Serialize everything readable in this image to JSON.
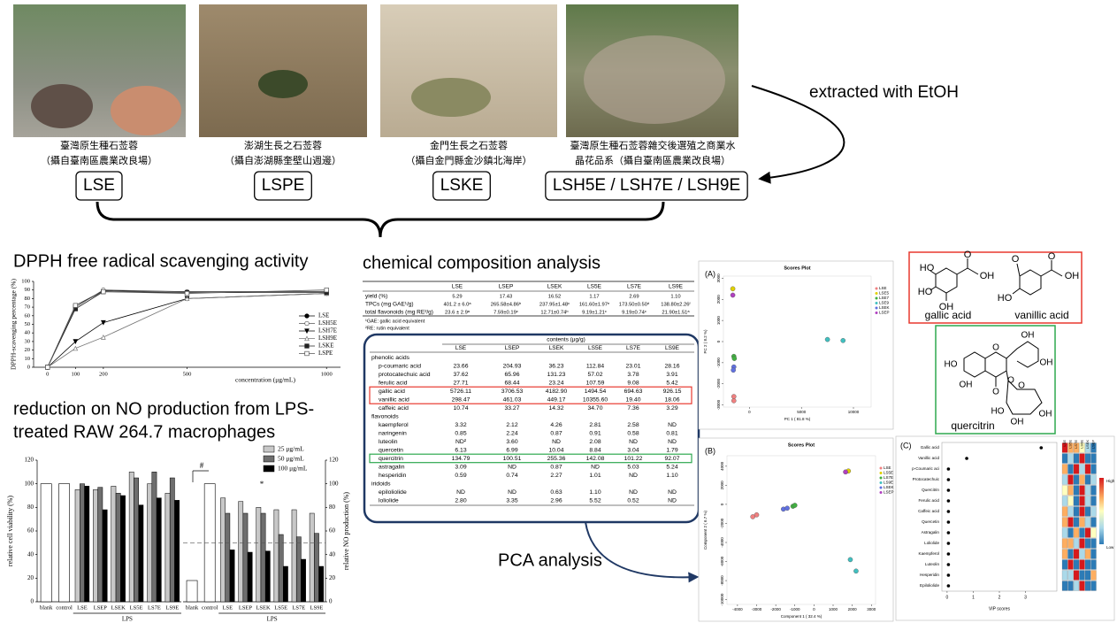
{
  "photos": [
    {
      "lines": [
        "臺灣原生種石莶蓉",
        "（攝自臺南區農業改良場）"
      ],
      "label": "LSE"
    },
    {
      "lines": [
        "澎湖生長之石莶蓉",
        "（攝自澎湖縣奎壁山週邊）"
      ],
      "label": "LSPE"
    },
    {
      "lines": [
        "金門生長之石莶蓉",
        "（攝自金門縣金沙鎮北海岸）"
      ],
      "label": "LSKE"
    },
    {
      "lines": [
        "臺灣原生種石莶蓉雜交後選殖之商業水",
        "晶花品系（攝自臺南區農業改良場）"
      ],
      "label": "LSH5E / LSH7E / LSH9E"
    }
  ],
  "extraction": "extracted with EtOH",
  "composition": {
    "title": "chemical composition analysis",
    "summary": {
      "header": [
        "LSE",
        "LSEP",
        "LSEK",
        "LS5E",
        "LS7E",
        "LS9E"
      ],
      "rows": [
        [
          "yield (%)",
          "5.29",
          "17.43",
          "16.52",
          "1.17",
          "2.69",
          "1.10"
        ],
        [
          "TPCs (mg GAE¹/g)",
          "401.2 ± 6.0ᵃ",
          "265.58±4.86ᵇ",
          "237.95±1.48ᶜ",
          "161.60±1.97ᵉ",
          "173.50±0.50ᵈ",
          "138.80±2.26ᶠ"
        ],
        [
          "total flavonoids (mg RE²/g)",
          "23.6 ± 2.9ᵃ",
          "7.59±0.19ᶜ",
          "12.71±0.74ᵇ",
          "9.19±1.21ᶜ",
          "9.19±0.74ᶜ",
          "21.90±1.51ᵃ"
        ]
      ],
      "footnotes": [
        "¹GAE: gallic acid equivalent",
        "²RE: rutin equivalent"
      ]
    },
    "contents": {
      "unit": "contents (μg/g)",
      "header": [
        "LSE",
        "LSEP",
        "LSEK",
        "LS5E",
        "LS7E",
        "LS9E"
      ],
      "groups": [
        {
          "name": "phenolic acids",
          "rows": [
            {
              "cells": [
                "p-coumaric acid",
                "23.66",
                "204.93",
                "36.23",
                "112.84",
                "23.01",
                "28.16"
              ]
            },
            {
              "cells": [
                "protocatechuic acid",
                "37.62",
                "65.96",
                "131.23",
                "57.02",
                "3.78",
                "3.91"
              ]
            },
            {
              "cells": [
                "ferulic acid",
                "27.71",
                "68.44",
                "23.24",
                "107.59",
                "9.08",
                "5.42"
              ]
            },
            {
              "cells": [
                "gallic acid",
                "5726.11",
                "3706.53",
                "4182.90",
                "1494.54",
                "694.63",
                "926.15"
              ],
              "highlight": "#e8392f"
            },
            {
              "cells": [
                "vanillic acid",
                "298.47",
                "461.03",
                "449.17",
                "10355.60",
                "19.40",
                "18.06"
              ],
              "highlight": "#e8392f"
            },
            {
              "cells": [
                "caffeic acid",
                "10.74",
                "33.27",
                "14.32",
                "34.70",
                "7.36",
                "3.29"
              ]
            }
          ]
        },
        {
          "name": "flavonoids",
          "rows": [
            {
              "cells": [
                "kaempferol",
                "3.32",
                "2.12",
                "4.26",
                "2.81",
                "2.58",
                "ND"
              ]
            },
            {
              "cells": [
                "naringenin",
                "0.85",
                "2.24",
                "0.87",
                "0.91",
                "0.58",
                "0.81"
              ]
            },
            {
              "cells": [
                "luteolin",
                "ND²",
                "3.60",
                "ND",
                "2.08",
                "ND",
                "ND"
              ]
            },
            {
              "cells": [
                "quercetin",
                "6.13",
                "6.99",
                "10.04",
                "8.84",
                "3.04",
                "1.79"
              ]
            },
            {
              "cells": [
                "quercitrin",
                "134.79",
                "100.51",
                "255.36",
                "142.08",
                "101.22",
                "92.07"
              ],
              "highlight": "#2ea84f"
            },
            {
              "cells": [
                "astragalin",
                "3.09",
                "ND",
                "0.87",
                "ND",
                "5.03",
                "5.24"
              ]
            },
            {
              "cells": [
                "hesperidin",
                "0.59",
                "0.74",
                "2.27",
                "1.01",
                "ND",
                "1.10"
              ]
            }
          ]
        },
        {
          "name": "iridoids",
          "rows": [
            {
              "cells": [
                "epiloliolide",
                "ND",
                "ND",
                "0.63",
                "1.10",
                "ND",
                "ND"
              ]
            },
            {
              "cells": [
                "loliolide",
                "2.80",
                "3.35",
                "2.96",
                "5.52",
                "0.52",
                "ND"
              ]
            }
          ]
        }
      ]
    }
  },
  "pca_title": "PCA analysis",
  "structures": [
    {
      "name": "gallic acid",
      "atoms": [
        "HO",
        "HO",
        "OH",
        "O",
        "OH"
      ]
    },
    {
      "name": "vanillic acid",
      "atoms": [
        "O",
        "HO",
        "O",
        "OH"
      ]
    },
    {
      "name": "quercitrin",
      "atoms": [
        "OH",
        "OH",
        "HO",
        "O",
        "O",
        "OH",
        "O",
        "O",
        "HO",
        "OH",
        "OH"
      ]
    }
  ],
  "chart_data": [
    {
      "type": "line",
      "title": "DPPH free radical scavenging activity",
      "xlabel": "concentration (μg/mL)",
      "ylabel": "DPPH-scavenging percentage (%)",
      "x": [
        0,
        100,
        200,
        500,
        1000
      ],
      "xlim": [
        -50,
        1050
      ],
      "xticks": [
        0,
        100,
        200,
        500,
        1000
      ],
      "ylim": [
        0,
        100
      ],
      "yticks": [
        0,
        10,
        20,
        30,
        40,
        50,
        60,
        70,
        80,
        90,
        100
      ],
      "series": [
        {
          "name": "LSE",
          "color": "#000000",
          "marker": "circle-filled",
          "values": [
            0,
            72,
            89,
            88,
            88
          ]
        },
        {
          "name": "LSH5E",
          "color": "#555555",
          "marker": "circle-open",
          "values": [
            0,
            70,
            90,
            88,
            88
          ]
        },
        {
          "name": "LSH7E",
          "color": "#000000",
          "marker": "triangle-down-filled",
          "values": [
            0,
            30,
            52,
            80,
            86
          ]
        },
        {
          "name": "LSH9E",
          "color": "#777777",
          "marker": "triangle-up-open",
          "values": [
            0,
            22,
            35,
            80,
            86
          ]
        },
        {
          "name": "LSKE",
          "color": "#222222",
          "marker": "square-filled",
          "values": [
            0,
            68,
            88,
            87,
            87
          ]
        },
        {
          "name": "LSPE",
          "color": "#555555",
          "marker": "square-open",
          "values": [
            0,
            72,
            88,
            86,
            90
          ]
        }
      ]
    },
    {
      "type": "bar",
      "title": [
        "reduction on NO production from LPS-",
        "treated RAW 264.7 macrophages"
      ],
      "categories": [
        "blank",
        "control",
        "LSE",
        "LSEP",
        "LSEK",
        "LS5E",
        "LS7E",
        "LS9E"
      ],
      "group_label": "LPS",
      "ylim": [
        0,
        120
      ],
      "yticks": [
        0,
        20,
        40,
        60,
        80,
        100,
        120
      ],
      "series": [
        {
          "name": "25 μg/mL",
          "color": "#c8c8c8"
        },
        {
          "name": "50 μg/mL",
          "color": "#6e6e6e"
        },
        {
          "name": "100 μg/mL",
          "color": "#000000"
        }
      ],
      "untreated_color": "#ffffff",
      "panels": [
        {
          "ylabel": "relative cell viability (%)",
          "untreated": [
            100,
            100
          ],
          "values": [
            [
              95,
              95,
              98,
              110,
              100,
              92
            ],
            [
              100,
              97,
              92,
              105,
              110,
              105
            ],
            [
              98,
              78,
              90,
              82,
              88,
              86
            ]
          ]
        },
        {
          "ylabel": "relative NO production (%)",
          "untreated": [
            18,
            100
          ],
          "values": [
            [
              88,
              85,
              80,
              78,
              78,
              75
            ],
            [
              75,
              75,
              75,
              57,
              55,
              58
            ],
            [
              44,
              42,
              43,
              30,
              36,
              30
            ]
          ]
        }
      ],
      "reference_line": 50,
      "annotations": [
        "#",
        "*"
      ]
    },
    {
      "type": "scatter",
      "panel": "(A)",
      "title": "Scores Plot",
      "xlabel": "PC 1 ( 81.8 %)",
      "ylabel": "PC 2 ( 8.2 %)",
      "xlim": [
        -2500,
        11700
      ],
      "xticks": [
        0,
        5000,
        10000
      ],
      "ylim": [
        -3100,
        3100
      ],
      "yticks": [
        -3000,
        -2000,
        -1000,
        0,
        1000,
        2000,
        3000
      ],
      "series": [
        {
          "name": "LSE",
          "color": "#f08080",
          "x": [
            -1500,
            -1500
          ],
          "y": [
            -2600,
            -2800
          ]
        },
        {
          "name": "LSE5",
          "color": "#e0d000",
          "x": [
            -1600
          ],
          "y": [
            2500
          ]
        },
        {
          "name": "LSE7",
          "color": "#40b040",
          "x": [
            -1500,
            -1450
          ],
          "y": [
            -700,
            -800
          ]
        },
        {
          "name": "LSE9",
          "color": "#40c0c0",
          "x": [
            7500,
            9000
          ],
          "y": [
            100,
            50
          ]
        },
        {
          "name": "LSEK",
          "color": "#6070e0",
          "x": [
            -1500,
            -1550
          ],
          "y": [
            -1200,
            -1350
          ]
        },
        {
          "name": "LSEP",
          "color": "#b040c0",
          "x": [
            -1600
          ],
          "y": [
            2200
          ]
        }
      ]
    },
    {
      "type": "scatter",
      "panel": "(B)",
      "title": "Scores Plot",
      "xlabel": "Component 1 ( 32.4 %)",
      "ylabel": "Component 2 ( 6.7 %)",
      "xlim": [
        -4550,
        3220
      ],
      "xticks": [
        -4000,
        -3000,
        -2000,
        -1000,
        0,
        1000,
        2000,
        3000
      ],
      "ylim": [
        -10500,
        5100
      ],
      "yticks": [
        -10000,
        -8000,
        -6000,
        -4000,
        -2000,
        0,
        2000,
        4000
      ],
      "series": [
        {
          "name": "LSE",
          "color": "#f08080",
          "x": [
            -3000,
            -3200
          ],
          "y": [
            -1100,
            -1300
          ]
        },
        {
          "name": "LS5E",
          "color": "#e0d000",
          "x": [
            1800
          ],
          "y": [
            3500
          ]
        },
        {
          "name": "LS7E",
          "color": "#40b040",
          "x": [
            -1100,
            -1000
          ],
          "y": [
            -200,
            -100
          ]
        },
        {
          "name": "LS9E",
          "color": "#40c0c0",
          "x": [
            1900,
            2200
          ],
          "y": [
            -5800,
            -7000
          ]
        },
        {
          "name": "LSEK",
          "color": "#6070e0",
          "x": [
            -1600,
            -1400
          ],
          "y": [
            -500,
            -400
          ]
        },
        {
          "name": "LSEP",
          "color": "#b040c0",
          "x": [
            1650
          ],
          "y": [
            3400
          ]
        }
      ]
    },
    {
      "type": "dot",
      "panel": "(C)",
      "xlabel": "VIP scores",
      "categories": [
        "Gallic acid",
        "Vanillic acid",
        "p-Coumaric aci",
        "Protocatechuic",
        "Quercitrin",
        "Ferulic acid",
        "Caffeic acid",
        "Quercetin",
        "Astragalin",
        "Loliolide",
        "Kaempferol",
        "Luteolin",
        "Hesperidin",
        "Epiloliolide"
      ],
      "values": [
        3.6,
        0.75,
        0.05,
        0.05,
        0.05,
        0.05,
        0.05,
        0.05,
        0.05,
        0.05,
        0.05,
        0.05,
        0.05,
        0.05
      ],
      "xlim": [
        -0.2,
        4.2
      ],
      "xticks": [
        0,
        1,
        2,
        3
      ],
      "columns": [
        "LSE",
        "LS5E",
        "LS7E",
        "LS9E",
        "LSEK",
        "LSEP"
      ],
      "high": "High",
      "low": "Low",
      "heatmap": [
        [
          "#d7191c",
          "#fdae61",
          "#fdae61",
          "#ffffbf",
          "#abd9e9",
          "#2c7bb6"
        ],
        [
          "#2c7bb6",
          "#abd9e9",
          "#2c7bb6",
          "#d7191c",
          "#2c7bb6",
          "#2c7bb6"
        ],
        [
          "#fdae61",
          "#2c7bb6",
          "#d7191c",
          "#abd9e9",
          "#d7191c",
          "#2c7bb6"
        ],
        [
          "#abd9e9",
          "#d7191c",
          "#2c7bb6",
          "#fdae61",
          "#2c7bb6",
          "#abd9e9"
        ],
        [
          "#ffffbf",
          "#fdae61",
          "#2c7bb6",
          "#d7191c",
          "#abd9e9",
          "#2c7bb6"
        ],
        [
          "#abd9e9",
          "#ffffbf",
          "#2c7bb6",
          "#d7191c",
          "#abd9e9",
          "#2c7bb6"
        ],
        [
          "#fdae61",
          "#abd9e9",
          "#2c7bb6",
          "#d7191c",
          "#2c7bb6",
          "#abd9e9"
        ],
        [
          "#fdae61",
          "#d7191c",
          "#2c7bb6",
          "#fdae61",
          "#abd9e9",
          "#2c7bb6"
        ],
        [
          "#abd9e9",
          "#2c7bb6",
          "#fdae61",
          "#2c7bb6",
          "#d7191c",
          "#ffffbf"
        ],
        [
          "#fdae61",
          "#fdae61",
          "#abd9e9",
          "#d7191c",
          "#2c7bb6",
          "#2c7bb6"
        ],
        [
          "#fdae61",
          "#2c7bb6",
          "#d7191c",
          "#abd9e9",
          "#fdae61",
          "#2c7bb6"
        ],
        [
          "#2c7bb6",
          "#d7191c",
          "#2c7bb6",
          "#d7191c",
          "#2c7bb6",
          "#2c7bb6"
        ],
        [
          "#abd9e9",
          "#abd9e9",
          "#d7191c",
          "#2c7bb6",
          "#2c7bb6",
          "#fdae61"
        ],
        [
          "#2c7bb6",
          "#2c7bb6",
          "#abd9e9",
          "#d7191c",
          "#2c7bb6",
          "#2c7bb6"
        ]
      ]
    }
  ]
}
